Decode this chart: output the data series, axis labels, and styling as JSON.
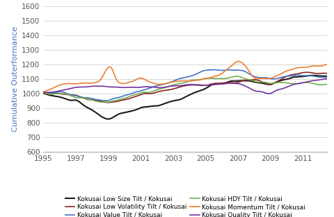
{
  "title": "",
  "ylabel": "Cumulative Outerformance",
  "ylim": [
    600,
    1600
  ],
  "yticks": [
    600,
    700,
    800,
    900,
    1000,
    1100,
    1200,
    1300,
    1400,
    1500,
    1600
  ],
  "xlim": [
    1995.0,
    2012.5
  ],
  "xticks": [
    1995,
    1997,
    1999,
    2001,
    2003,
    2005,
    2007,
    2009,
    2011
  ],
  "series": {
    "low_size": {
      "label": "Kokusai Low Size Tilt / Kokusai",
      "color": "#1a1a1a",
      "linewidth": 1.5
    },
    "low_vol": {
      "label": "Kokusai Low Volatility Tilt / Kokusai",
      "color": "#8B2020",
      "linewidth": 1.2
    },
    "value": {
      "label": "Kokusai Value Tilt / Kokusai",
      "color": "#4472C4",
      "linewidth": 1.2
    },
    "hdy": {
      "label": "Kokusai HDY Tilt / Kokusai",
      "color": "#70AD47",
      "linewidth": 1.2
    },
    "momentum": {
      "label": "Kokusai Momentum Tilt / Kokusai",
      "color": "#ED7D31",
      "linewidth": 1.2
    },
    "quality": {
      "label": "Kokusai Quality Tilt / Kokusai",
      "color": "#7030A0",
      "linewidth": 1.2
    }
  },
  "background_color": "#ffffff",
  "grid_color": "#d0d0d0",
  "ylabel_color": "#4472C4",
  "ylabel_fontsize": 8,
  "tick_fontsize": 7.5,
  "legend_fontsize": 6.5
}
